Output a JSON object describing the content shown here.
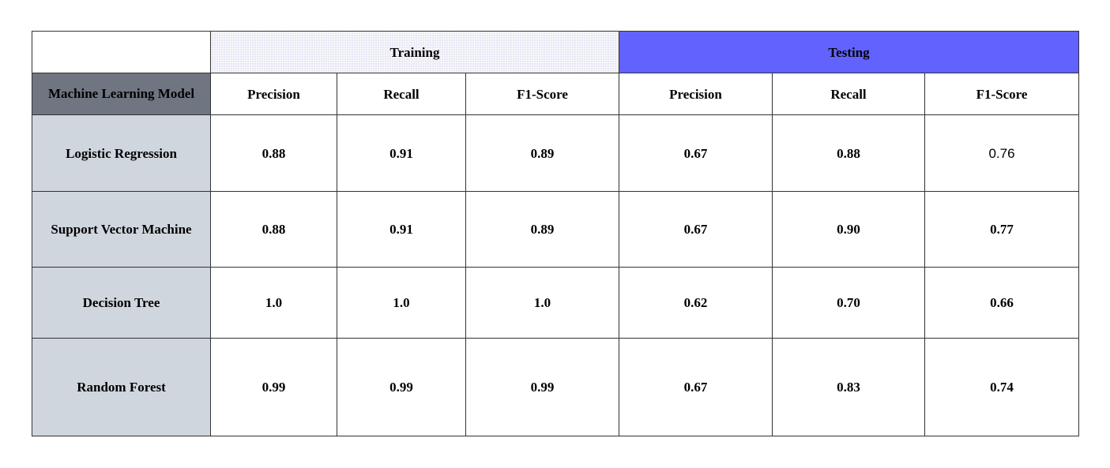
{
  "colors": {
    "training_header_bg": "#f7f7fc",
    "testing_header_bg": "#6262ff",
    "model_header_bg": "#6f7681",
    "model_cell_bg": "#d0d6dd"
  },
  "table": {
    "groups": {
      "training": "Training",
      "testing": "Testing"
    },
    "model_header": "Machine Learning Model",
    "metric_headers": [
      "Precision",
      "Recall",
      "F1-Score",
      "Precision",
      "Recall",
      "F1-Score"
    ],
    "rows": [
      {
        "model": "Logistic Regression",
        "values": [
          "0.88",
          "0.91",
          "0.89",
          "0.67",
          "0.88",
          "0.76"
        ]
      },
      {
        "model": "Support Vector Machine",
        "values": [
          "0.88",
          "0.91",
          "0.89",
          "0.67",
          "0.90",
          "0.77"
        ]
      },
      {
        "model": "Decision Tree",
        "values": [
          "1.0",
          "1.0",
          "1.0",
          "0.62",
          "0.70",
          "0.66"
        ]
      },
      {
        "model": "Random Forest",
        "values": [
          "0.99",
          "0.99",
          "0.99",
          "0.67",
          "0.83",
          "0.74"
        ]
      }
    ]
  }
}
